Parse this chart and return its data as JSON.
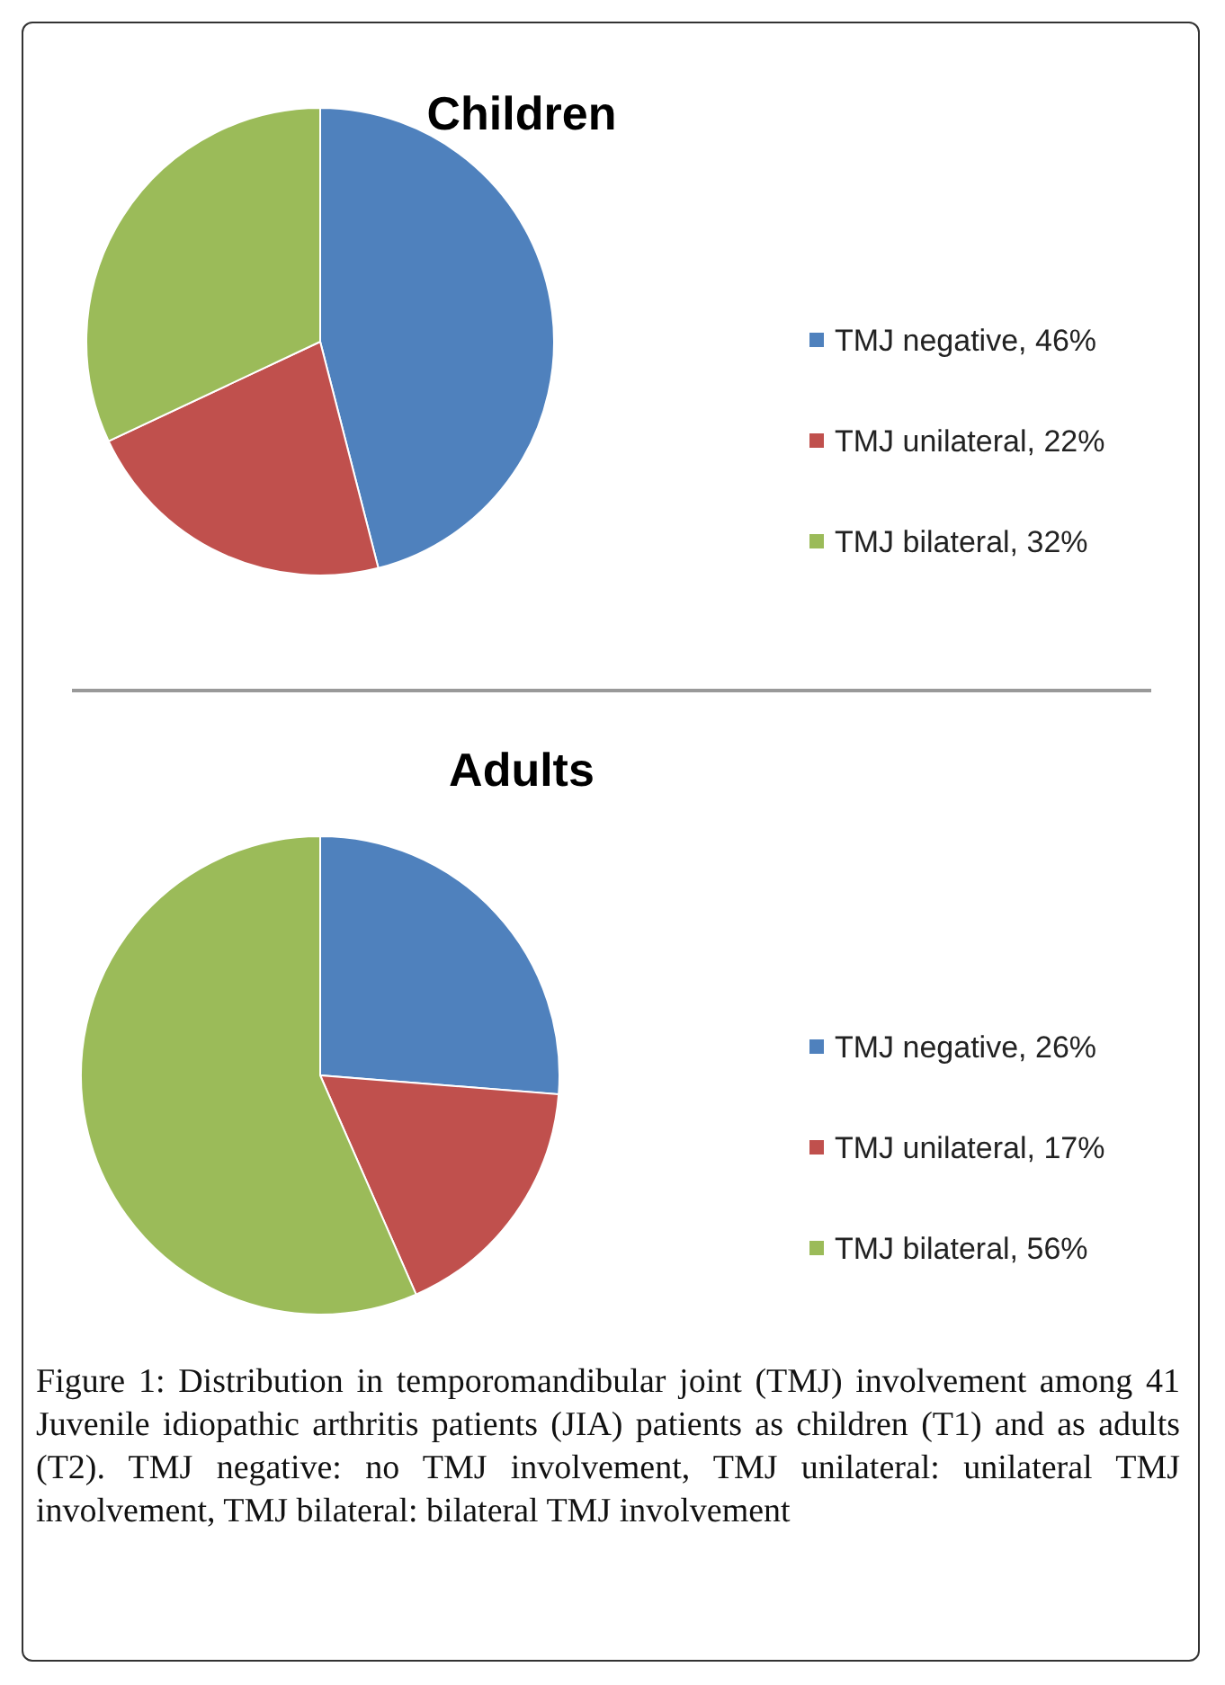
{
  "chart_data": [
    {
      "type": "pie",
      "title": "Children",
      "categories": [
        "TMJ negative, 46%",
        "TMJ unilateral, 22%",
        "TMJ bilateral, 32%"
      ],
      "values": [
        46,
        22,
        32
      ],
      "colors": [
        "#4f81bd",
        "#c0504d",
        "#9bbb59"
      ],
      "legend": "right"
    },
    {
      "type": "pie",
      "title": "Adults",
      "categories": [
        "TMJ negative, 26%",
        "TMJ unilateral, 17%",
        "TMJ bilateral, 56%"
      ],
      "values": [
        26,
        17,
        56
      ],
      "colors": [
        "#4f81bd",
        "#c0504d",
        "#9bbb59"
      ],
      "legend": "right",
      "annotations": [
        "Figure 1: Distribution in temporomandibular joint (TMJ) involvement among 41 Juvenile idiopathic arthritis patients (JIA) patients as children (T1) and as adults (T2). TMJ negative: no TMJ involvement, TMJ unilateral: unilateral TMJ involvement, TMJ bilateral: bilateral TMJ involvement"
      ]
    }
  ]
}
